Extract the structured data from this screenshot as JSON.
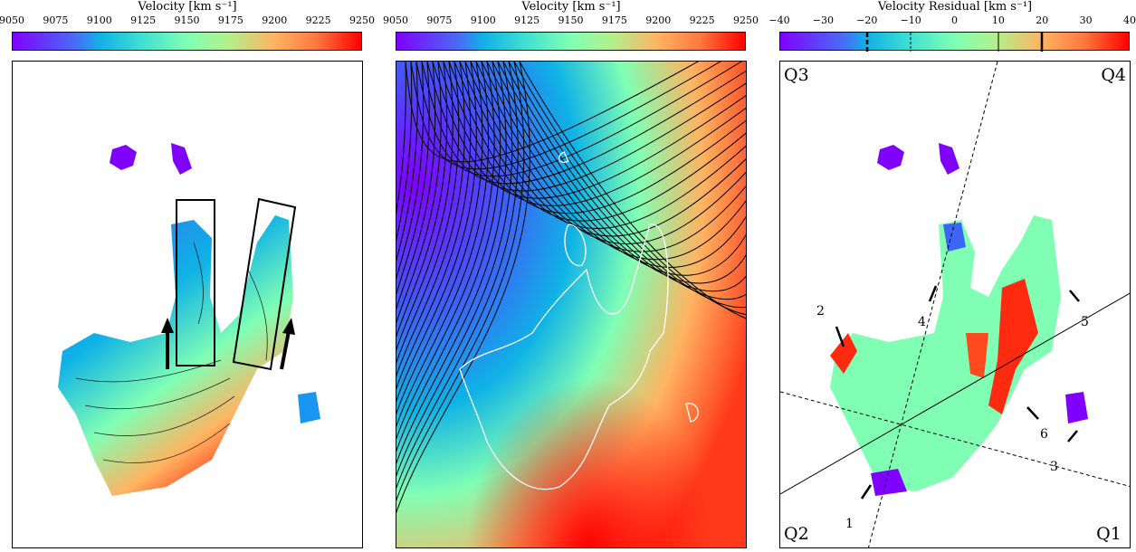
{
  "chart_data": [
    {
      "type": "heatmap",
      "panel": "observed velocity",
      "colorbar": {
        "label": "Velocity [km s⁻¹]",
        "range": [
          9050,
          9250
        ],
        "ticks": [
          "9050",
          "9075",
          "9100",
          "9125",
          "9150",
          "9175",
          "9200",
          "9225",
          "9250"
        ],
        "colormap": "rainbow"
      },
      "annotations": [
        "two rectangular slit boxes",
        "two upward arrows"
      ]
    },
    {
      "type": "heatmap",
      "panel": "model velocity",
      "colorbar": {
        "label": "Velocity [km s⁻¹]",
        "range": [
          9050,
          9250
        ],
        "ticks": [
          "9050",
          "9075",
          "9100",
          "9125",
          "9150",
          "9175",
          "9200",
          "9225",
          "9250"
        ],
        "colormap": "rainbow"
      },
      "annotations": [
        "black iso-velocity contours",
        "white outline of emission"
      ]
    },
    {
      "type": "heatmap",
      "panel": "velocity residual",
      "colorbar": {
        "label": "Velocity Residual [km s⁻¹]",
        "range": [
          -40,
          40
        ],
        "ticks": [
          "−40",
          "−30",
          "−20",
          "−10",
          "0",
          "10",
          "20",
          "30",
          "40"
        ],
        "contour_levels": [
          -20,
          -10,
          10,
          20
        ],
        "colormap": "rainbow"
      },
      "quadrants": [
        "Q1",
        "Q2",
        "Q3",
        "Q4"
      ],
      "arrow_labels": [
        "1",
        "2",
        "3",
        "4",
        "5",
        "6"
      ]
    }
  ]
}
